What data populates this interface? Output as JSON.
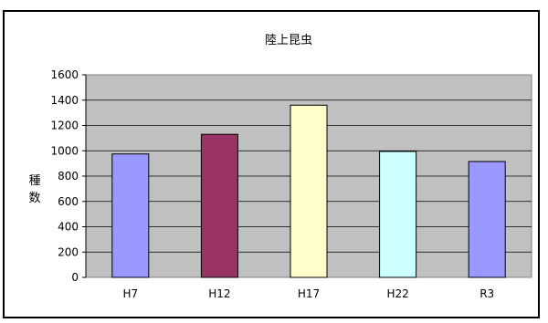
{
  "chart_data": {
    "type": "bar",
    "title": "陸上昆虫",
    "ylabel": "種数",
    "xlabel": "",
    "categories": [
      "H7",
      "H12",
      "H17",
      "H22",
      "R3"
    ],
    "values": [
      975,
      1130,
      1360,
      995,
      915
    ],
    "bar_colors": [
      "#9999ff",
      "#993366",
      "#ffffcc",
      "#ccffff",
      "#9999ff"
    ],
    "ylim": [
      0,
      1600
    ],
    "yticks": [
      0,
      200,
      400,
      600,
      800,
      1000,
      1200,
      1400,
      1600
    ],
    "grid": true,
    "legend": "none",
    "plot_background": "#c0c0c0"
  }
}
